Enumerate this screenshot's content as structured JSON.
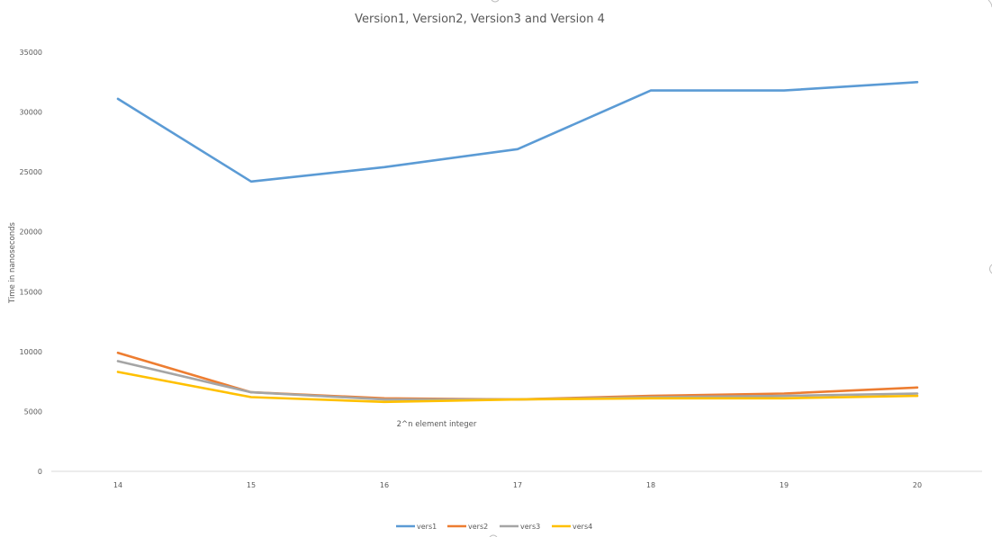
{
  "chart_data": {
    "type": "line",
    "title": "Version1, Version2, Version3 and Version 4",
    "xlabel": "2^n element integer",
    "ylabel": "Time in nanoseconds",
    "categories": [
      "14",
      "15",
      "16",
      "17",
      "18",
      "19",
      "20"
    ],
    "ylim": [
      0,
      35000
    ],
    "yticks": [
      0,
      5000,
      10000,
      15000,
      20000,
      25000,
      30000,
      35000
    ],
    "grid": false,
    "legend_position": "bottom",
    "series": [
      {
        "name": "vers1",
        "color": "#5B9BD5",
        "values": [
          31100,
          24200,
          25400,
          26900,
          31800,
          31800,
          32500
        ]
      },
      {
        "name": "vers2",
        "color": "#ED7D31",
        "values": [
          9900,
          6600,
          6100,
          6000,
          6300,
          6500,
          7000
        ]
      },
      {
        "name": "vers3",
        "color": "#A5A5A5",
        "values": [
          9200,
          6600,
          6000,
          6000,
          6200,
          6300,
          6500
        ]
      },
      {
        "name": "vers4",
        "color": "#FFC000",
        "values": [
          8300,
          6200,
          5800,
          6000,
          6100,
          6100,
          6300
        ]
      }
    ]
  }
}
